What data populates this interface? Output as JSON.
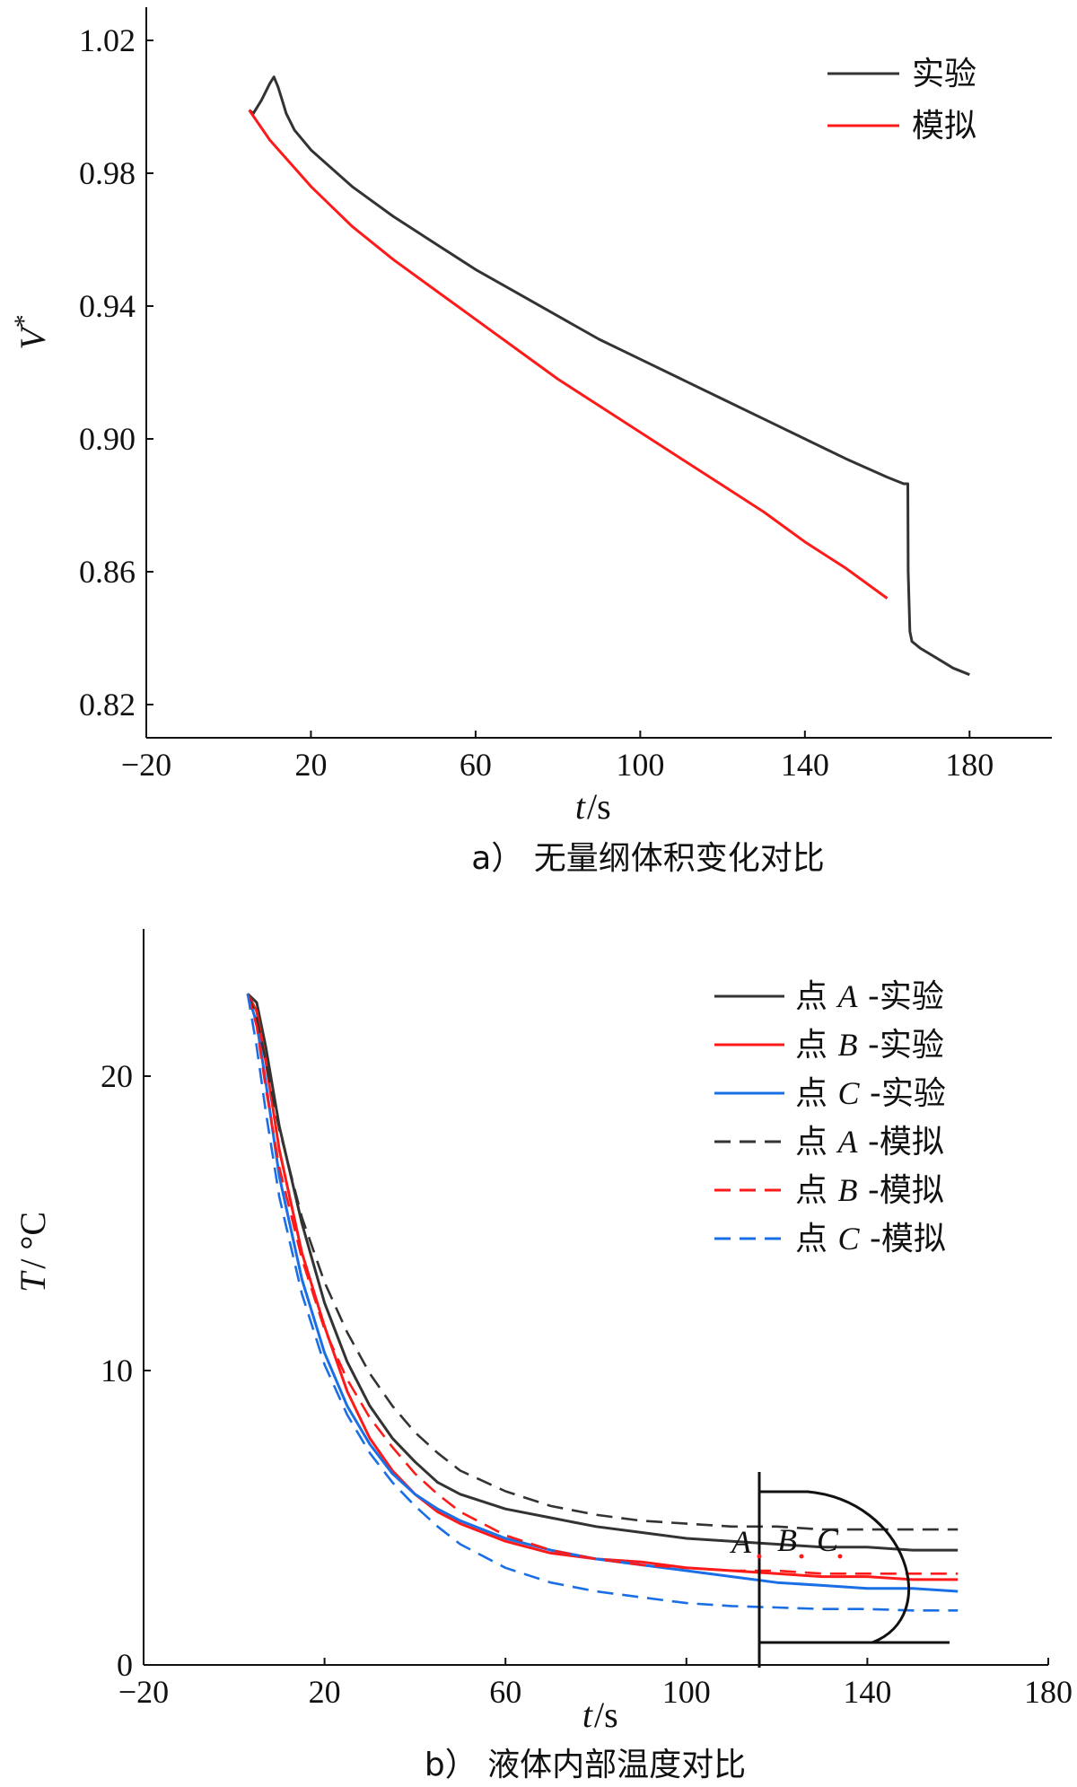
{
  "chart_data": [
    {
      "type": "line",
      "caption": "a） 无量纲体积变化对比",
      "xlabel_var": "t",
      "xlabel_unit": "/s",
      "ylabel_var": "V",
      "ylabel_sup": "*",
      "xlim": [
        -20,
        200
      ],
      "ylim": [
        0.81,
        1.03
      ],
      "xticks": [
        -20,
        20,
        60,
        100,
        140,
        180
      ],
      "xtick_labels": [
        "−20",
        "20",
        "60",
        "100",
        "140",
        "180"
      ],
      "yticks": [
        0.82,
        0.86,
        0.9,
        0.94,
        0.98,
        1.02
      ],
      "ytick_labels": [
        "0.82",
        "0.86",
        "0.90",
        "0.94",
        "0.98",
        "1.02"
      ],
      "legend_position": "top-right",
      "series": [
        {
          "name": "实验",
          "color": "#333333",
          "dash": "solid",
          "x": [
            5,
            6,
            8,
            10,
            11,
            12,
            13,
            14,
            16,
            20,
            30,
            40,
            50,
            60,
            70,
            80,
            90,
            100,
            110,
            120,
            130,
            140,
            150,
            160,
            164,
            165,
            165.1,
            165.5,
            166,
            168,
            172,
            176,
            180
          ],
          "y": [
            0.999,
            0.998,
            1.002,
            1.007,
            1.009,
            1.006,
            1.002,
            0.998,
            0.993,
            0.987,
            0.976,
            0.967,
            0.959,
            0.951,
            0.944,
            0.937,
            0.93,
            0.924,
            0.918,
            0.912,
            0.906,
            0.9,
            0.894,
            0.8885,
            0.8865,
            0.8865,
            0.86,
            0.842,
            0.839,
            0.837,
            0.834,
            0.831,
            0.829
          ]
        },
        {
          "name": "模拟",
          "color": "#ff1a1a",
          "dash": "solid",
          "x": [
            5,
            10,
            20,
            30,
            40,
            50,
            60,
            70,
            80,
            90,
            100,
            110,
            120,
            130,
            140,
            150,
            160
          ],
          "y": [
            0.999,
            0.99,
            0.976,
            0.964,
            0.954,
            0.945,
            0.936,
            0.927,
            0.918,
            0.91,
            0.902,
            0.894,
            0.886,
            0.878,
            0.869,
            0.861,
            0.852
          ]
        }
      ]
    },
    {
      "type": "line",
      "caption": "b） 液体内部温度对比",
      "xlabel_var": "t",
      "xlabel_unit": "/s",
      "ylabel_var": "T",
      "ylabel_unit": "/ °C",
      "xlim": [
        -20,
        180
      ],
      "ylim": [
        0,
        25
      ],
      "xticks": [
        -20,
        20,
        60,
        100,
        140,
        180
      ],
      "xtick_labels": [
        "−20",
        "20",
        "60",
        "100",
        "140",
        "180"
      ],
      "yticks": [
        0,
        10,
        20
      ],
      "ytick_labels": [
        "0",
        "10",
        "20"
      ],
      "legend_position": "top-right",
      "series": [
        {
          "name": "点 A -实验",
          "point": "A",
          "suffix": "-实验",
          "color": "#333333",
          "dash": "solid",
          "x": [
            3,
            5,
            7,
            10,
            15,
            20,
            25,
            30,
            35,
            40,
            45,
            50,
            60,
            70,
            80,
            90,
            100,
            110,
            120,
            130,
            140,
            150,
            160
          ],
          "y": [
            22.8,
            22.5,
            21.0,
            18.3,
            15.0,
            12.3,
            10.3,
            8.8,
            7.7,
            6.9,
            6.2,
            5.8,
            5.3,
            5.0,
            4.7,
            4.5,
            4.3,
            4.2,
            4.1,
            4.0,
            4.0,
            3.9,
            3.9
          ]
        },
        {
          "name": "点 B -实验",
          "point": "B",
          "suffix": "-实验",
          "color": "#ff1a1a",
          "dash": "solid",
          "x": [
            3,
            5,
            7,
            10,
            15,
            20,
            25,
            30,
            35,
            40,
            45,
            50,
            60,
            70,
            80,
            90,
            100,
            110,
            120,
            130,
            140,
            150,
            160
          ],
          "y": [
            22.8,
            22.2,
            20.5,
            17.5,
            14.0,
            11.5,
            9.3,
            7.7,
            6.6,
            5.8,
            5.2,
            4.8,
            4.2,
            3.8,
            3.6,
            3.5,
            3.3,
            3.2,
            3.1,
            3.0,
            3.0,
            2.9,
            2.9
          ]
        },
        {
          "name": "点 C -实验",
          "point": "C",
          "suffix": "-实验",
          "color": "#1a6fe6",
          "dash": "solid",
          "x": [
            3,
            5,
            7,
            10,
            15,
            20,
            25,
            30,
            35,
            40,
            45,
            50,
            60,
            70,
            80,
            90,
            100,
            110,
            120,
            130,
            140,
            150,
            160
          ],
          "y": [
            22.8,
            21.8,
            19.8,
            16.6,
            13.1,
            10.6,
            8.8,
            7.5,
            6.5,
            5.8,
            5.3,
            4.9,
            4.3,
            3.9,
            3.6,
            3.4,
            3.2,
            3.0,
            2.8,
            2.7,
            2.6,
            2.6,
            2.5
          ]
        },
        {
          "name": "点 A -模拟",
          "point": "A",
          "suffix": "-模拟",
          "color": "#333333",
          "dash": "dashed",
          "x": [
            3,
            5,
            7,
            10,
            15,
            20,
            25,
            30,
            35,
            40,
            45,
            50,
            60,
            70,
            80,
            90,
            100,
            110,
            120,
            130,
            140,
            150,
            160
          ],
          "y": [
            22.8,
            22.0,
            20.5,
            18.2,
            15.2,
            13.0,
            11.3,
            9.9,
            8.8,
            7.9,
            7.2,
            6.6,
            5.9,
            5.4,
            5.1,
            4.9,
            4.8,
            4.7,
            4.7,
            4.6,
            4.6,
            4.6,
            4.6
          ]
        },
        {
          "name": "点 B -模拟",
          "point": "B",
          "suffix": "-模拟",
          "color": "#ff1a1a",
          "dash": "dashed",
          "x": [
            3,
            5,
            7,
            10,
            15,
            20,
            25,
            30,
            35,
            40,
            45,
            50,
            60,
            70,
            80,
            90,
            100,
            110,
            120,
            130,
            140,
            150,
            160
          ],
          "y": [
            22.8,
            21.7,
            19.6,
            16.9,
            13.8,
            11.4,
            9.7,
            8.4,
            7.4,
            6.5,
            5.8,
            5.2,
            4.4,
            3.9,
            3.6,
            3.4,
            3.3,
            3.2,
            3.2,
            3.1,
            3.1,
            3.1,
            3.1
          ]
        },
        {
          "name": "点 C -模拟",
          "point": "C",
          "suffix": "-模拟",
          "color": "#1a6fe6",
          "dash": "dashed",
          "x": [
            3,
            5,
            7,
            10,
            15,
            20,
            25,
            30,
            35,
            40,
            45,
            50,
            60,
            70,
            80,
            90,
            100,
            110,
            120,
            130,
            140,
            150,
            160
          ],
          "y": [
            22.8,
            21.0,
            18.8,
            15.9,
            12.6,
            10.2,
            8.5,
            7.2,
            6.2,
            5.4,
            4.7,
            4.1,
            3.3,
            2.8,
            2.5,
            2.3,
            2.1,
            2.0,
            1.95,
            1.9,
            1.9,
            1.85,
            1.85
          ]
        }
      ],
      "inset": {
        "labels": [
          "A",
          "B",
          "C"
        ],
        "dot_color": "#ff1a1a"
      }
    }
  ]
}
